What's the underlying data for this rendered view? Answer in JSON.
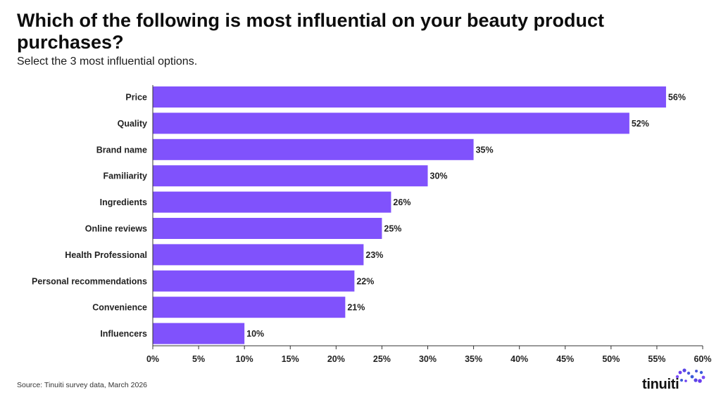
{
  "header": {
    "title": "Which of the following is most influential on your beauty product purchases?",
    "subtitle": "Select the 3 most influential options."
  },
  "footer": {
    "source": "Source: Tinuiti survey data, March 2026",
    "brand": "tinuiti",
    "brand_icon": "dots-infinity-logo-icon"
  },
  "colors": {
    "bar": "#8052fc",
    "text": "#222222",
    "axis": "#333333",
    "logo_purple": "#6a3df0",
    "logo_blue": "#3a5bd9"
  },
  "chart_data": {
    "type": "bar",
    "orientation": "horizontal",
    "categories": [
      "Price",
      "Quality",
      "Brand name",
      "Familiarity",
      "Ingredients",
      "Online reviews",
      "Health Professional",
      "Personal recommendations",
      "Convenience",
      "Influencers"
    ],
    "values": [
      56,
      52,
      35,
      30,
      26,
      25,
      23,
      22,
      21,
      10
    ],
    "data_labels": [
      "56%",
      "52%",
      "35%",
      "30%",
      "26%",
      "25%",
      "23%",
      "22%",
      "21%",
      "10%"
    ],
    "xlim": [
      0,
      60
    ],
    "xticks": [
      0,
      5,
      10,
      15,
      20,
      25,
      30,
      35,
      40,
      45,
      50,
      55,
      60
    ],
    "xtick_labels": [
      "0%",
      "5%",
      "10%",
      "15%",
      "20%",
      "25%",
      "30%",
      "35%",
      "40%",
      "45%",
      "50%",
      "55%",
      "60%"
    ],
    "grid": false,
    "legend": "none"
  }
}
